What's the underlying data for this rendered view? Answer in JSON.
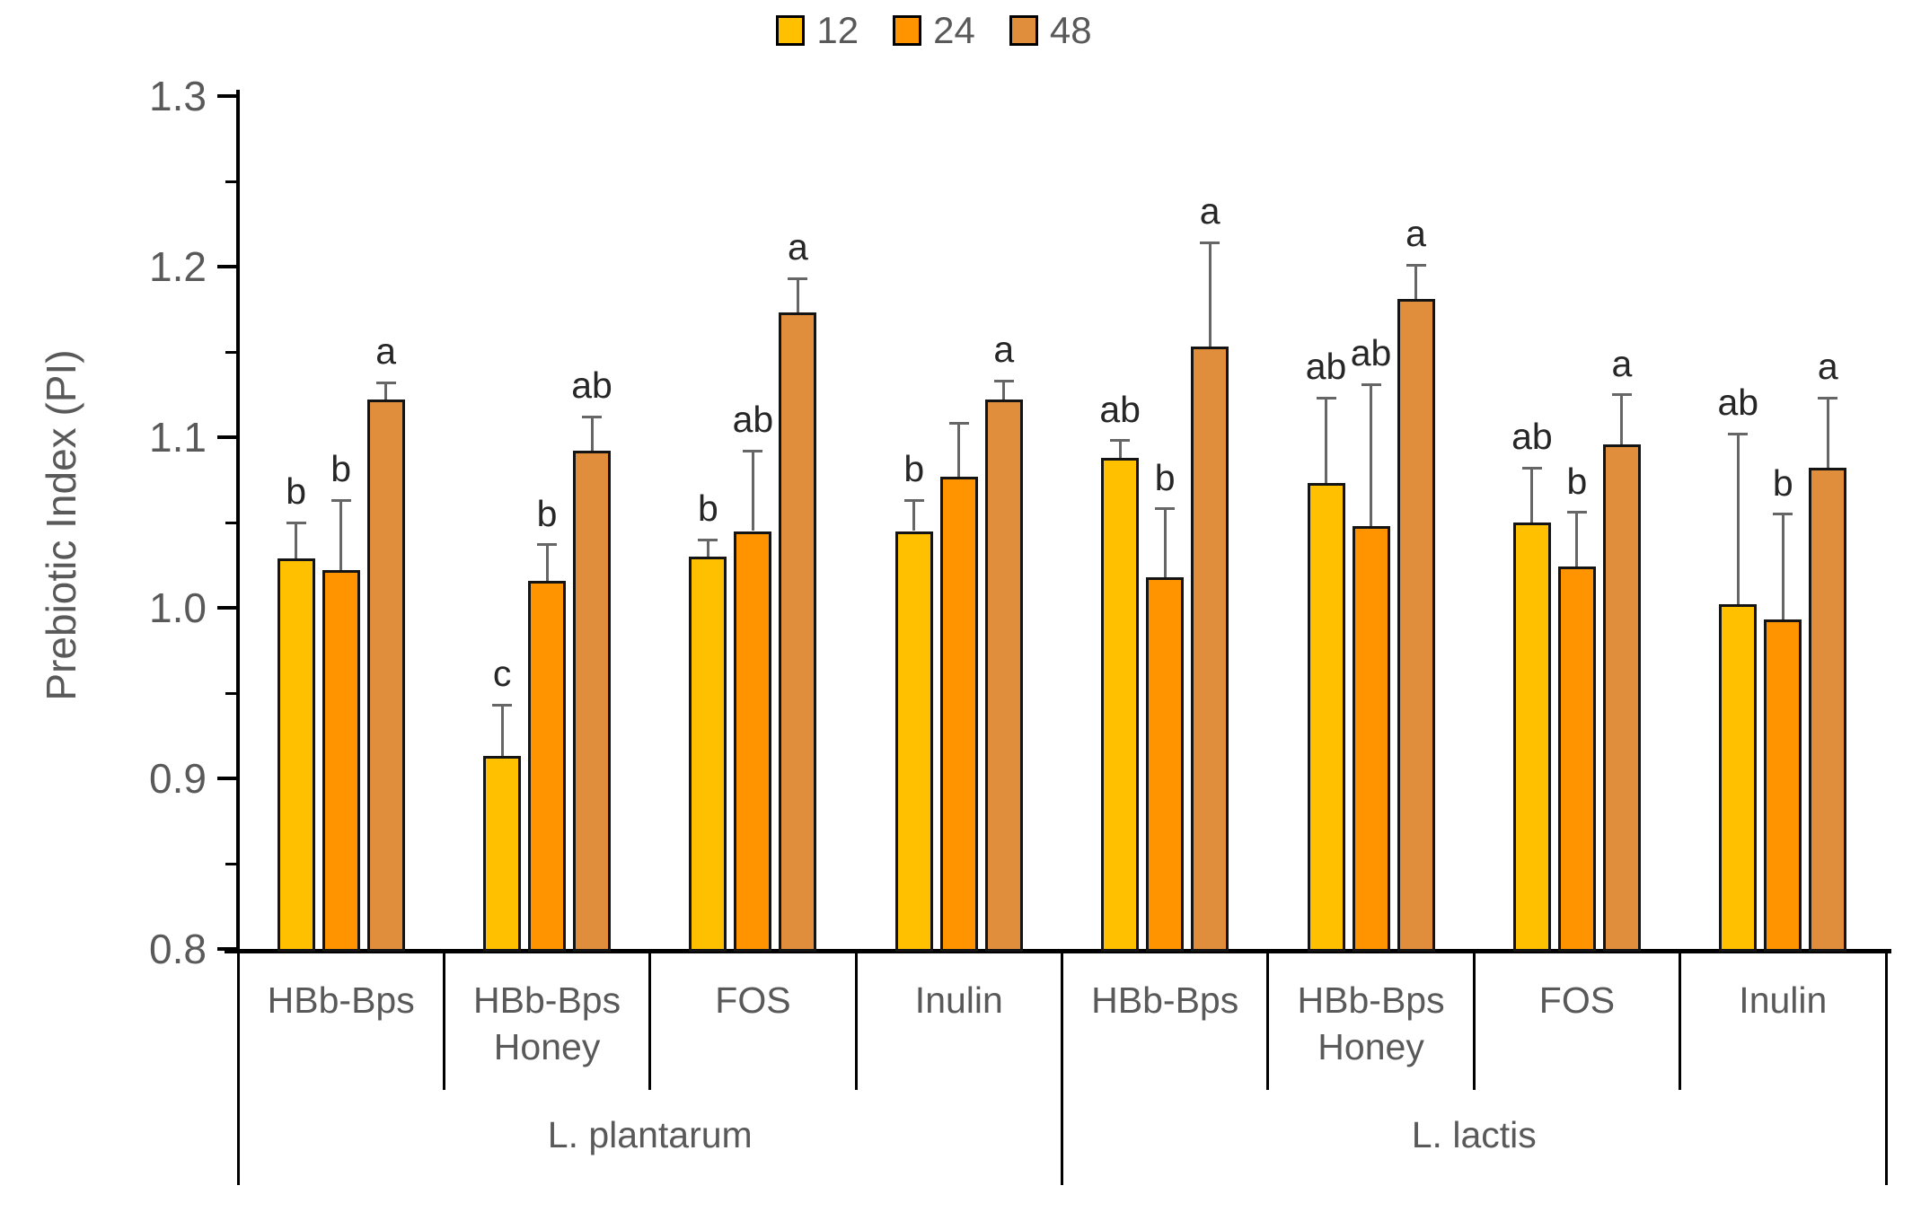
{
  "chart_data": {
    "type": "bar",
    "title": "",
    "ylabel": "Prebiotic Index (PI)",
    "ylim": [
      0.8,
      1.3
    ],
    "grid": false,
    "legend_position": "top-center",
    "y_major_ticks": [
      {
        "label": "1.3",
        "value": 1.3
      },
      {
        "label": "1.2",
        "value": 1.2
      },
      {
        "label": "1.1",
        "value": 1.1
      },
      {
        "label": "1.0",
        "value": 1.0
      },
      {
        "label": "0.9",
        "value": 0.9
      },
      {
        "label": "0.8",
        "value": 0.8
      }
    ],
    "y_minor_ticks": [
      1.25,
      1.15,
      1.05,
      0.95,
      0.85
    ],
    "series": [
      {
        "name": "12",
        "color": "#FFC000"
      },
      {
        "name": "24",
        "color": "#FF9300"
      },
      {
        "name": "48",
        "color": "#E08E3C"
      }
    ],
    "error_bar_color": "#666666",
    "groups": [
      {
        "substrate": "HBb-Bps",
        "species": "L. plantarum",
        "bars": [
          {
            "series": "12",
            "value": 1.029,
            "error_top": 1.05,
            "letter": "b"
          },
          {
            "series": "24",
            "value": 1.022,
            "error_top": 1.063,
            "letter": "b"
          },
          {
            "series": "48",
            "value": 1.122,
            "error_top": 1.132,
            "letter": "a"
          }
        ]
      },
      {
        "substrate": "HBb-Bps\nHoney",
        "species": "L. plantarum",
        "bars": [
          {
            "series": "12",
            "value": 0.913,
            "error_top": 0.943,
            "letter": "c"
          },
          {
            "series": "24",
            "value": 1.016,
            "error_top": 1.037,
            "letter": "b"
          },
          {
            "series": "48",
            "value": 1.092,
            "error_top": 1.112,
            "letter": "ab"
          }
        ]
      },
      {
        "substrate": "FOS",
        "species": "L. plantarum",
        "bars": [
          {
            "series": "12",
            "value": 1.03,
            "error_top": 1.04,
            "letter": "b"
          },
          {
            "series": "24",
            "value": 1.045,
            "error_top": 1.092,
            "letter": "ab"
          },
          {
            "series": "48",
            "value": 1.173,
            "error_top": 1.193,
            "letter": "a"
          }
        ]
      },
      {
        "substrate": "Inulin",
        "species": "L. plantarum",
        "bars": [
          {
            "series": "12",
            "value": 1.045,
            "error_top": 1.063,
            "letter": "b"
          },
          {
            "series": "24",
            "value": 1.077,
            "error_top": 1.108,
            "letter": ""
          },
          {
            "series": "48",
            "value": 1.122,
            "error_top": 1.133,
            "letter": "a"
          }
        ]
      },
      {
        "substrate": "HBb-Bps",
        "species": "L. lactis",
        "bars": [
          {
            "series": "12",
            "value": 1.088,
            "error_top": 1.098,
            "letter": "ab"
          },
          {
            "series": "24",
            "value": 1.018,
            "error_top": 1.058,
            "letter": "b"
          },
          {
            "series": "48",
            "value": 1.153,
            "error_top": 1.214,
            "letter": "a"
          }
        ]
      },
      {
        "substrate": "HBb-Bps\nHoney",
        "species": "L. lactis",
        "bars": [
          {
            "series": "12",
            "value": 1.073,
            "error_top": 1.123,
            "letter": "ab"
          },
          {
            "series": "24",
            "value": 1.048,
            "error_top": 1.131,
            "letter": "ab"
          },
          {
            "series": "48",
            "value": 1.181,
            "error_top": 1.201,
            "letter": "a"
          }
        ]
      },
      {
        "substrate": "FOS",
        "species": "L. lactis",
        "bars": [
          {
            "series": "12",
            "value": 1.05,
            "error_top": 1.082,
            "letter": "ab"
          },
          {
            "series": "24",
            "value": 1.024,
            "error_top": 1.056,
            "letter": "b"
          },
          {
            "series": "48",
            "value": 1.096,
            "error_top": 1.125,
            "letter": "a"
          }
        ]
      },
      {
        "substrate": "Inulin",
        "species": "L. lactis",
        "bars": [
          {
            "series": "12",
            "value": 1.002,
            "error_top": 1.102,
            "letter": "ab"
          },
          {
            "series": "24",
            "value": 0.993,
            "error_top": 1.055,
            "letter": "b"
          },
          {
            "series": "48",
            "value": 1.082,
            "error_top": 1.123,
            "letter": "a"
          }
        ]
      }
    ],
    "species_labels": [
      {
        "label": "L. plantarum",
        "group_start": 0,
        "group_count": 4
      },
      {
        "label": "L. lactis",
        "group_start": 4,
        "group_count": 4
      }
    ]
  }
}
